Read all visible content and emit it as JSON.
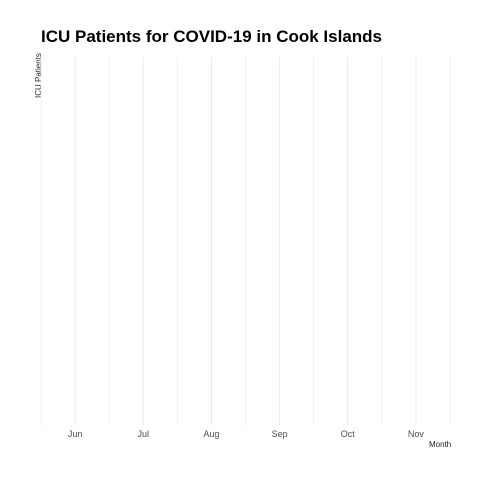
{
  "chart_data": {
    "type": "line",
    "title": "ICU Patients for COVID-19 in Cook Islands",
    "xlabel": "Month",
    "ylabel": "ICU Patients",
    "categories": [
      "Jun",
      "Jul",
      "Aug",
      "Sep",
      "Oct",
      "Nov"
    ],
    "series": [],
    "grid": true,
    "colors": {
      "grid": "#ebebeb",
      "tick_text": "#4d4d4d",
      "title": "#000000"
    }
  }
}
